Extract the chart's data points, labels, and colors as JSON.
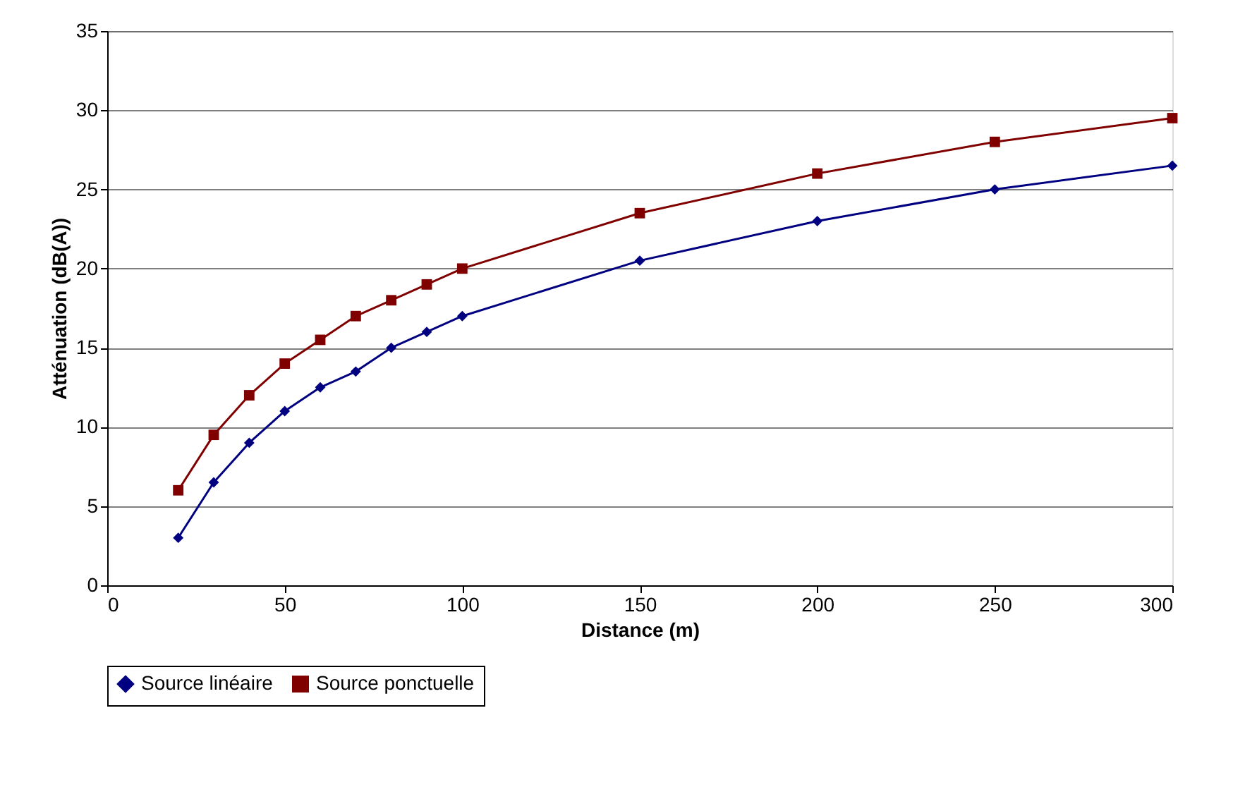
{
  "chart_data": {
    "type": "line",
    "xlabel": "Distance (m)",
    "ylabel": "Atténuation (dB(A))",
    "x": [
      20,
      30,
      40,
      50,
      60,
      70,
      80,
      90,
      100,
      150,
      200,
      250,
      300
    ],
    "series": [
      {
        "name": "Source linéaire",
        "color": "#000080",
        "marker": "diamond",
        "values": [
          3,
          6.5,
          9,
          11,
          12.5,
          13.5,
          15,
          16,
          17,
          20.5,
          23,
          25,
          26.5
        ]
      },
      {
        "name": "Source ponctuelle",
        "color": "#800000",
        "marker": "square",
        "values": [
          6,
          9.5,
          12,
          14,
          15.5,
          17,
          18,
          19,
          20,
          23.5,
          26,
          28,
          29.5
        ]
      }
    ],
    "xlim": [
      0,
      300
    ],
    "xticks": [
      0,
      50,
      100,
      150,
      200,
      250,
      300
    ],
    "ylim": [
      0,
      35
    ],
    "yticks": [
      0,
      5,
      10,
      15,
      20,
      25,
      30,
      35
    ],
    "grid": "y",
    "legend": "bottom",
    "line_style": "solid"
  }
}
